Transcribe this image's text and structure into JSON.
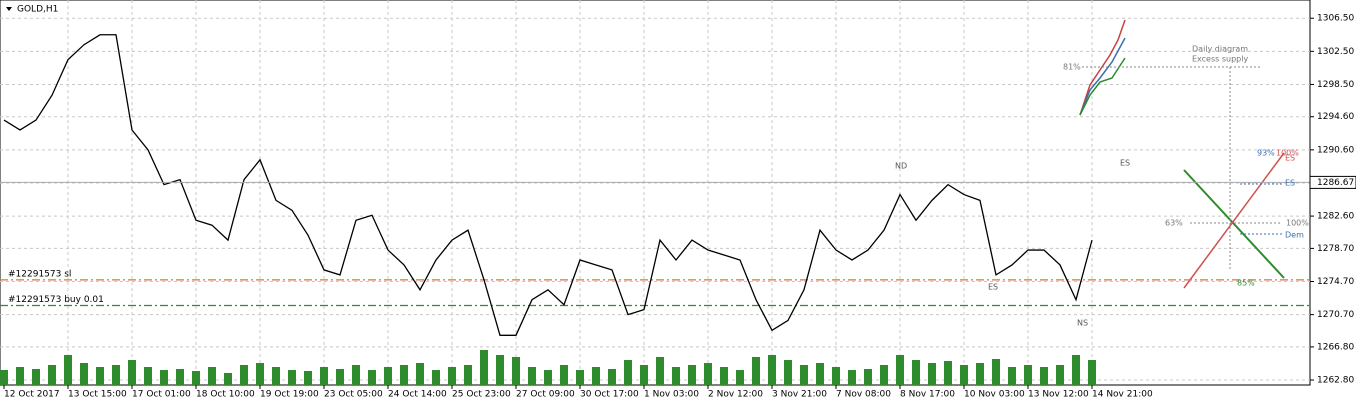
{
  "chart_data": {
    "type": "line",
    "title": "GOLD,H1",
    "categories": [
      "12 Oct 2017",
      null,
      null,
      null,
      "13 Oct 15:00",
      null,
      null,
      null,
      "17 Oct 01:00",
      null,
      null,
      null,
      "18 Oct 10:00",
      null,
      null,
      null,
      "19 Oct 19:00",
      null,
      null,
      null,
      "23 Oct 05:00",
      null,
      null,
      null,
      "24 Oct 14:00",
      null,
      null,
      null,
      "25 Oct 23:00",
      null,
      null,
      null,
      "27 Oct 09:00",
      null,
      null,
      null,
      "30 Oct 17:00",
      null,
      null,
      null,
      "1 Nov 03:00",
      null,
      null,
      null,
      "2 Nov 12:00",
      null,
      null,
      null,
      "3 Nov 21:00",
      null,
      null,
      null,
      "7 Nov 08:00",
      null,
      null,
      null,
      "8 Nov 17:00",
      null,
      null,
      null,
      "10 Nov 03:00",
      null,
      null,
      null,
      "13 Nov 12:00",
      null,
      null,
      null,
      "14 Nov 21:00"
    ],
    "series": [
      {
        "name": "GOLD",
        "color": "#000000",
        "values": [
          1294.2,
          1293.0,
          1294.2,
          1297.2,
          1301.5,
          1303.3,
          1304.5,
          1304.5,
          1293.0,
          1290.6,
          1286.4,
          1287.0,
          1282.1,
          1281.5,
          1279.7,
          1287.0,
          1289.4,
          1284.5,
          1283.3,
          1280.3,
          1276.1,
          1275.5,
          1282.1,
          1282.7,
          1278.5,
          1276.7,
          1273.7,
          1277.3,
          1279.7,
          1280.9,
          1274.9,
          1268.2,
          1268.2,
          1272.5,
          1273.7,
          1271.9,
          1277.3,
          1276.7,
          1276.1,
          1270.7,
          1271.3,
          1279.7,
          1277.3,
          1279.7,
          1278.5,
          1277.9,
          1277.3,
          1272.5,
          1268.8,
          1270.0,
          1273.7,
          1280.9,
          1278.5,
          1277.3,
          1278.5,
          1280.9,
          1285.2,
          1282.1,
          1284.5,
          1286.4,
          1285.2,
          1284.5,
          1275.5,
          1276.7,
          1278.5,
          1278.5,
          1276.7,
          1272.5,
          1279.7
        ]
      },
      {
        "name": "Volume",
        "color": "#2e8b2e",
        "values": [
          15,
          18,
          16,
          20,
          30,
          22,
          18,
          20,
          25,
          18,
          15,
          16,
          14,
          18,
          12,
          20,
          22,
          18,
          15,
          14,
          18,
          16,
          20,
          15,
          18,
          20,
          22,
          15,
          18,
          20,
          35,
          30,
          28,
          18,
          15,
          20,
          15,
          18,
          16,
          25,
          20,
          28,
          18,
          20,
          22,
          18,
          15,
          28,
          30,
          25,
          20,
          22,
          18,
          15,
          16,
          20,
          30,
          25,
          22,
          24,
          20,
          22,
          26,
          18,
          20,
          18,
          20,
          30,
          25
        ]
      }
    ],
    "ylim": [
      1262.2,
      1308.7
    ],
    "vlim": [
      0,
      100
    ],
    "yticks": [
      {
        "value": 1262.8,
        "label": "1262.80"
      },
      {
        "value": 1266.8,
        "label": "1266.80"
      },
      {
        "value": 1270.7,
        "label": "1270.70"
      },
      {
        "value": 1274.7,
        "label": "1274.70"
      },
      {
        "value": 1278.7,
        "label": "1278.70"
      },
      {
        "value": 1282.6,
        "label": "1282.60"
      },
      {
        "value": 1286.6,
        "label": "1286.60"
      },
      {
        "value": 1290.6,
        "label": "1290.60"
      },
      {
        "value": 1294.6,
        "label": "1294.60"
      },
      {
        "value": 1298.5,
        "label": "1298.50"
      },
      {
        "value": 1302.5,
        "label": "1302.50"
      },
      {
        "value": 1306.5,
        "label": "1306.50"
      }
    ],
    "grid": true,
    "current_price": 1286.67,
    "levels": [
      {
        "name": "#12291573 sl",
        "value": 1274.9,
        "color": "#e07040"
      },
      {
        "name": "#12291573 buy 0.01",
        "value": 1271.8,
        "color": "#2e8b2e"
      }
    ],
    "annotations": [
      "ND",
      "ES",
      "ES",
      "NS",
      "Daily diagram",
      "Excess supply",
      "81%",
      "63%",
      "100%",
      "93%",
      "100%",
      "ES",
      "ES",
      "Dem",
      "85%"
    ]
  }
}
